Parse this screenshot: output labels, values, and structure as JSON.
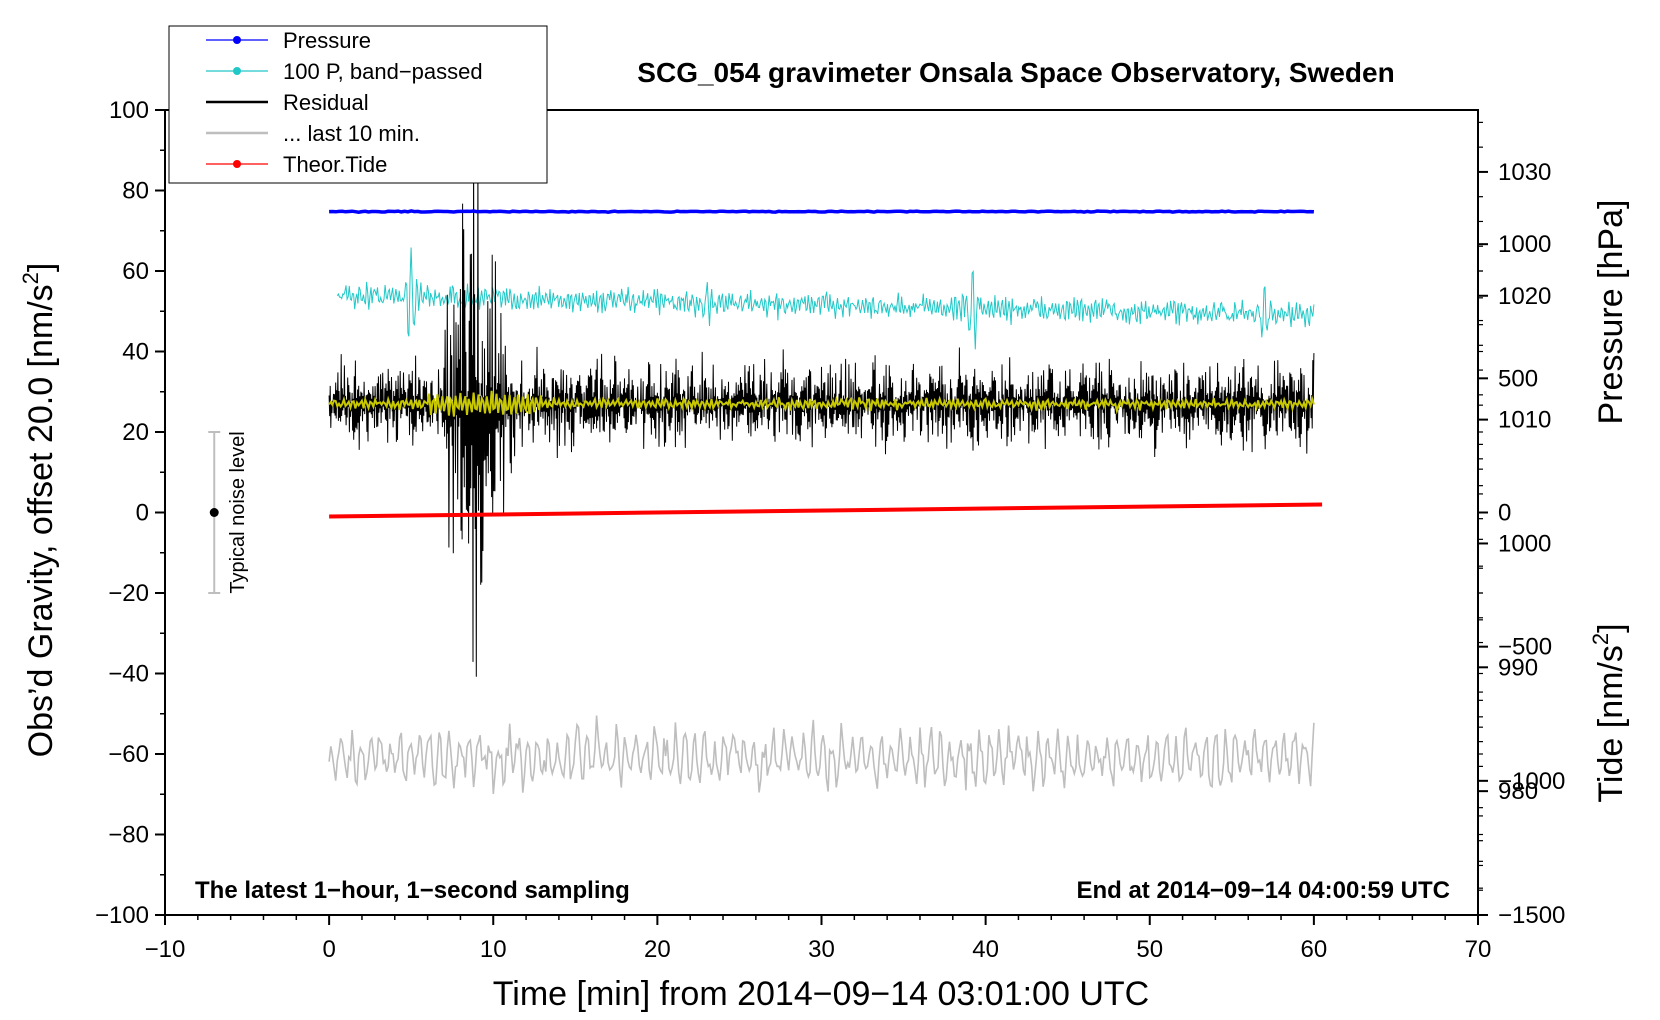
{
  "chart_data": {
    "type": "line",
    "title": "SCG_054 gravimeter Onsala Space Observatory, Sweden",
    "xlabel": "Time [min] from 2014−09−14 03:01:00 UTC",
    "ylabel_left": "Obs’d Gravity, offset 20.0 [nm/s",
    "ylabel_left_sup": "2",
    "ylabel_left_end": "]",
    "ylabel_pressure": "Pressure [hPa]",
    "ylabel_tide": "Tide [nm/s",
    "ylabel_tide_sup": "2",
    "ylabel_tide_end": "]",
    "xlim": [
      -10,
      70
    ],
    "ylim": [
      -100,
      100
    ],
    "pressure_ylim": [
      970,
      1035
    ],
    "tide_ylim": [
      -1500,
      1500
    ],
    "x_ticks": [
      {
        "v": -10,
        "label": "−10"
      },
      {
        "v": 0,
        "label": "0"
      },
      {
        "v": 10,
        "label": "10"
      },
      {
        "v": 20,
        "label": "20"
      },
      {
        "v": 30,
        "label": "30"
      },
      {
        "v": 40,
        "label": "40"
      },
      {
        "v": 50,
        "label": "50"
      },
      {
        "v": 60,
        "label": "60"
      },
      {
        "v": 70,
        "label": "70"
      }
    ],
    "y_ticks": [
      {
        "v": 100,
        "label": "100"
      },
      {
        "v": 80,
        "label": "80"
      },
      {
        "v": 60,
        "label": "60"
      },
      {
        "v": 40,
        "label": "40"
      },
      {
        "v": 20,
        "label": "20"
      },
      {
        "v": 0,
        "label": "0"
      },
      {
        "v": -20,
        "label": "−20"
      },
      {
        "v": -40,
        "label": "−40"
      },
      {
        "v": -60,
        "label": "−60"
      },
      {
        "v": -80,
        "label": "−80"
      },
      {
        "v": -100,
        "label": "−100"
      }
    ],
    "pressure_ticks": [
      {
        "v": 1030,
        "label": "1030"
      },
      {
        "v": 1020,
        "label": "1020"
      },
      {
        "v": 1010,
        "label": "1010"
      },
      {
        "v": 1000,
        "label": "1000"
      },
      {
        "v": 990,
        "label": "990"
      },
      {
        "v": 980,
        "label": "980"
      }
    ],
    "tide_ticks": [
      {
        "v": 1000,
        "label": "1000"
      },
      {
        "v": 500,
        "label": "500"
      },
      {
        "v": 0,
        "label": "0"
      },
      {
        "v": -500,
        "label": "−500"
      },
      {
        "v": -1000,
        "label": "−1000"
      },
      {
        "v": -1500,
        "label": "−1500"
      }
    ],
    "legend": [
      {
        "label": "Pressure",
        "color": "#0000ff",
        "marker": true
      },
      {
        "label": "100 P, band−passed",
        "color": "#20c8c8",
        "marker": true
      },
      {
        "label": "Residual",
        "color": "#000000",
        "marker": false
      },
      {
        "label": "... last 10 min.",
        "color": "#bebebe",
        "marker": false
      },
      {
        "label": "Theor.Tide",
        "color": "#ff0000",
        "marker": true
      }
    ],
    "series": [
      {
        "name": "Pressure",
        "axis": "pressure",
        "color": "#0000ff",
        "x_range": [
          0,
          60
        ],
        "level": 1026.8
      },
      {
        "name": "100 P, band-passed",
        "axis": "left",
        "color": "#20c8c8",
        "x_range": [
          0.5,
          60
        ],
        "level_start": 54,
        "level_end": 49,
        "amplitude": 2.5,
        "spikes": [
          {
            "x": 5,
            "amp": 12
          },
          {
            "x": 39.2,
            "amp": 12
          },
          {
            "x": 23,
            "amp": 6
          },
          {
            "x": 57,
            "amp": 7
          }
        ]
      },
      {
        "name": "Residual",
        "axis": "left",
        "color": "#000000",
        "x_range": [
          0,
          60
        ],
        "level": 27,
        "amplitude": 6,
        "burst": {
          "x_start": 7,
          "x_end": 12,
          "amp": 30
        }
      },
      {
        "name": "Residual (smoothed)",
        "axis": "left",
        "color": "#c8c800",
        "x_range": [
          0,
          60
        ],
        "level": 27
      },
      {
        "name": "... last 10 min.",
        "axis": "left",
        "color": "#bebebe",
        "x_range": [
          0,
          60
        ],
        "level": -61,
        "amplitude": 6
      },
      {
        "name": "Theor.Tide",
        "axis": "tide",
        "color": "#ff0000",
        "x": [
          0,
          60.5
        ],
        "y": [
          -15,
          30
        ]
      }
    ],
    "noise_bar": {
      "x": -7,
      "y": 0,
      "low": -20,
      "high": 20,
      "label": "Typical noise level"
    },
    "annotation_left": "The latest 1−hour, 1−second sampling",
    "annotation_right": "End at 2014−09−14 04:00:59 UTC"
  }
}
